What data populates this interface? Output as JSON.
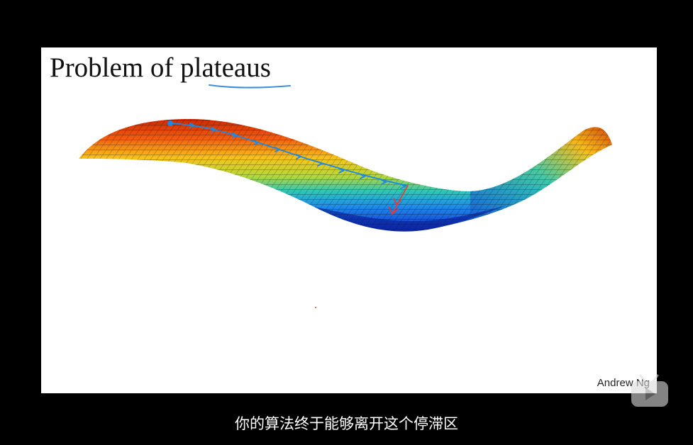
{
  "slide": {
    "title": "Problem of plateaus",
    "author": "Andrew Ng"
  },
  "subtitle": "你的算法终于能够离开这个停滞区",
  "icons": {
    "surface_plot": "3d-surface-plot-icon",
    "player_logo": "tv-play-icon"
  },
  "colors": {
    "gradient_path": "#1e88e5",
    "escape_path": "#e53935",
    "underline": "#3f8fd8"
  }
}
